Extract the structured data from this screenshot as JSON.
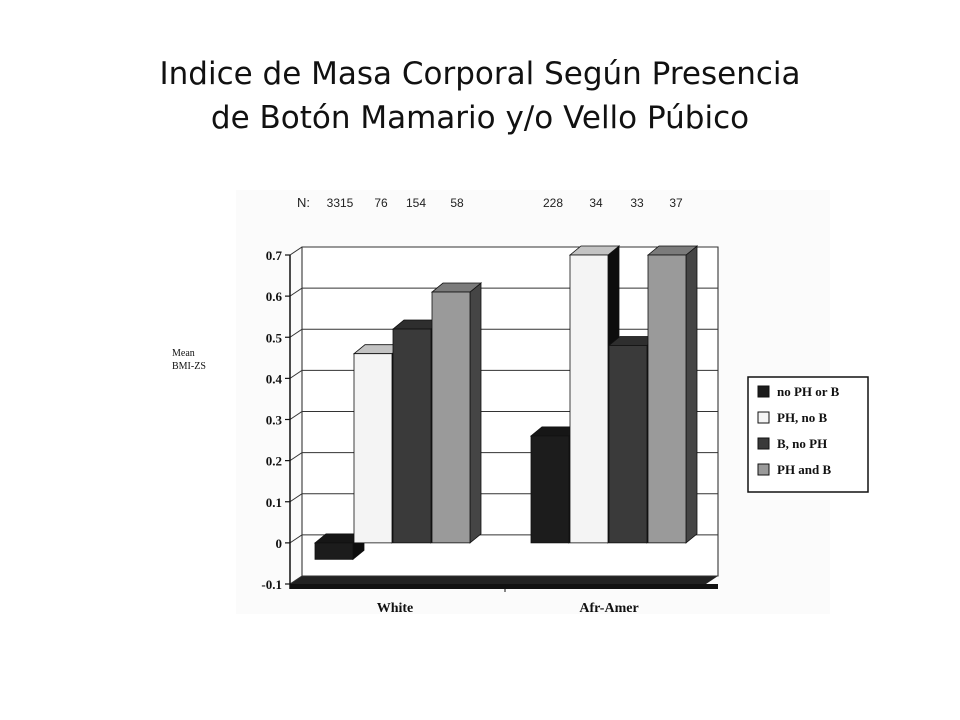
{
  "slide": {
    "title_line1": "Indice de Masa Corporal Según Presencia",
    "title_line2": "de Botón Mamario y/o Vello Púbico"
  },
  "chart_data": {
    "type": "bar",
    "ylabel_line1": "Mean",
    "ylabel_line2": "BMI-ZS",
    "ylim": [
      -0.1,
      0.7
    ],
    "yticks": [
      -0.1,
      0,
      0.1,
      0.2,
      0.3,
      0.4,
      0.5,
      0.6,
      0.7
    ],
    "grid": true,
    "legend_position": "right",
    "n_prefix": "N:",
    "categories": [
      "White",
      "Afr-Amer"
    ],
    "series": [
      {
        "name": "no PH or B",
        "values": [
          -0.04,
          0.26
        ],
        "n": [
          "3315",
          "228"
        ],
        "color": "#1c1c1c"
      },
      {
        "name": "PH, no B",
        "values": [
          0.46,
          0.7
        ],
        "n": [
          "76",
          "34"
        ],
        "color": "#f4f4f4"
      },
      {
        "name": "B, no PH",
        "values": [
          0.52,
          0.48
        ],
        "n": [
          "154",
          "33"
        ],
        "color": "#3a3a3a"
      },
      {
        "name": "PH and B",
        "values": [
          0.61,
          0.7
        ],
        "n": [
          "58",
          "37"
        ],
        "color": "#9a9a9a"
      }
    ]
  }
}
